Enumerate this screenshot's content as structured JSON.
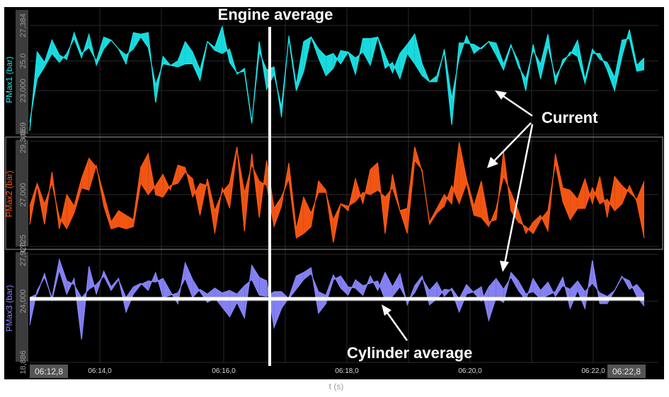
{
  "chart_data": {
    "type": "line",
    "title": "",
    "xlabel": "t (s)",
    "x_start_label": "06:12,8",
    "x_end_label": "06:22,8",
    "x_ticks": [
      "06:14,0",
      "06:16,0",
      "06:18,0",
      "06:20,0",
      "06:22,0"
    ],
    "engine_average_marker": "06:16,7",
    "sample_count": 84,
    "series": [
      {
        "name": "PMax1 (bar)",
        "color": "#19e6ea",
        "ylim": [
          20.069,
          27.384
        ],
        "tick_labels": [
          "20,069",
          "23,000",
          "25,0",
          "27,384"
        ],
        "tick_values": [
          20.069,
          23.0,
          25.0,
          27.384
        ],
        "current": [
          20.3,
          25.6,
          24.9,
          26.4,
          25.4,
          25.1,
          26.9,
          25.5,
          25.9,
          25.0,
          26.6,
          26.4,
          25.8,
          24.8,
          26.9,
          26.8,
          26.9,
          22.2,
          25.3,
          24.7,
          24.6,
          24.8,
          24.8,
          23.7,
          26.3,
          25.9,
          27.3,
          24.9,
          24.2,
          24.3,
          20.8,
          26.3,
          23.1,
          24.1,
          21.9,
          26.5,
          23.0,
          24.3,
          26.6,
          25.8,
          25.3,
          25.5,
          24.8,
          25.6,
          24.1,
          26.5,
          26.5,
          26.6,
          25.4,
          24.2,
          25.5,
          26.1,
          26.8,
          24.8,
          23.6,
          24.0,
          25.6,
          20.7,
          26.2,
          26.2,
          26.1,
          25.8,
          26.3,
          25.4,
          24.4,
          26.0,
          25.0,
          23.0,
          26.1,
          23.8,
          26.0,
          23.9,
          24.8,
          25.6,
          25.3,
          23.5,
          25.5,
          25.5,
          24.4,
          23.0,
          25.3,
          27.1,
          24.7,
          25.2
        ],
        "cylinder_average": [
          20.9,
          23.8,
          24.6,
          25.5,
          24.9,
          25.5,
          26.5,
          25.2,
          26.8,
          24.7,
          25.8,
          26.4,
          25.8,
          25.4,
          25.8,
          26.6,
          25.9,
          23.4,
          24.8,
          24.7,
          25.0,
          26.3,
          25.6,
          24.4,
          26.3,
          25.7,
          25.5,
          25.8,
          24.1,
          24.5,
          20.9,
          25.6,
          24.4,
          24.6,
          21.2,
          26.7,
          23.4,
          26.3,
          26.6,
          25.2,
          24.0,
          24.5,
          25.7,
          25.6,
          25.2,
          25.6,
          24.7,
          26.6,
          24.5,
          24.9,
          23.8,
          25.5,
          24.8,
          24.0,
          23.6,
          23.6,
          25.8,
          22.5,
          25.2,
          26.7,
          25.5,
          25.9,
          26.3,
          26.2,
          24.8,
          26.1,
          24.6,
          23.8,
          25.7,
          24.8,
          26.8,
          23.4,
          25.1,
          25.4,
          26.4,
          23.8,
          25.8,
          25.1,
          24.9,
          23.9,
          26.4,
          26.5,
          24.3,
          24.4
        ]
      },
      {
        "name": "PMax2 (bar)",
        "color": "#ff5a14",
        "ylim": [
          24.725,
          29.346
        ],
        "tick_labels": [
          "24,725",
          "27,000",
          "29,346"
        ],
        "tick_values": [
          24.725,
          27.0,
          29.346
        ],
        "current": [
          25.7,
          27.4,
          25.7,
          28.0,
          25.5,
          27.0,
          26.5,
          27.7,
          28.6,
          28.2,
          27.0,
          25.8,
          26.3,
          26.1,
          25.9,
          28.2,
          28.8,
          27.0,
          26.9,
          27.4,
          27.5,
          28.0,
          27.7,
          26.1,
          27.7,
          26.3,
          27.1,
          27.5,
          29.1,
          25.4,
          28.8,
          26.0,
          28.5,
          26.4,
          26.9,
          27.7,
          25.1,
          25.3,
          25.6,
          27.6,
          27.2,
          24.9,
          26.6,
          26.3,
          27.7,
          26.6,
          28.1,
          28.4,
          25.3,
          27.9,
          26.3,
          26.4,
          29.1,
          28.0,
          25.8,
          26.4,
          27.0,
          26.6,
          29.3,
          27.7,
          26.5,
          27.6,
          25.8,
          25.9,
          28.9,
          26.3,
          25.8,
          25.6,
          25.3,
          25.9,
          26.3,
          28.4,
          26.7,
          25.9,
          26.4,
          26.4,
          27.3,
          26.6,
          26.8,
          26.3,
          26.6,
          27.4,
          26.7,
          25.1
        ],
        "cylinder_average": [
          26.5,
          27.5,
          26.6,
          27.5,
          26.0,
          25.5,
          26.2,
          27.3,
          27.2,
          28.3,
          26.5,
          25.5,
          25.6,
          25.5,
          25.6,
          27.5,
          27.0,
          27.4,
          27.9,
          27.2,
          28.3,
          28.2,
          26.9,
          27.5,
          27.4,
          25.3,
          27.3,
          26.4,
          29.0,
          27.1,
          28.3,
          27.6,
          27.4,
          25.6,
          26.5,
          28.4,
          25.5,
          26.9,
          26.2,
          27.1,
          27.1,
          25.9,
          26.6,
          26.5,
          26.7,
          27.1,
          27.0,
          27.2,
          26.9,
          27.3,
          26.3,
          25.3,
          28.5,
          28.1,
          25.7,
          26.2,
          26.5,
          27.4,
          26.6,
          27.5,
          26.1,
          26.0,
          25.6,
          26.4,
          27.8,
          27.1,
          26.3,
          25.3,
          25.8,
          26.1,
          25.4,
          28.8,
          27.3,
          27.2,
          26.8,
          27.7,
          26.6,
          27.8,
          26.0,
          27.8,
          27.4,
          27.1,
          26.8,
          27.6
        ],
        "fill_between": true
      },
      {
        "name": "PMax3 (bar)",
        "color": "#8a87ff",
        "ylim": [
          18.886,
          27.92
        ],
        "tick_labels": [
          "18,886",
          "24,000",
          "27,920"
        ],
        "tick_values": [
          18.886,
          24.0,
          27.92
        ],
        "current": [
          24.3,
          24.6,
          26.3,
          24.1,
          26.6,
          24.6,
          25.9,
          20.8,
          26.9,
          24.6,
          26.5,
          25.2,
          25.9,
          23.1,
          24.6,
          25.4,
          25.7,
          25.6,
          25.9,
          24.8,
          23.8,
          27.2,
          25.8,
          24.8,
          23.9,
          24.3,
          23.5,
          22.7,
          23.9,
          22.6,
          27.0,
          26.0,
          25.7,
          21.8,
          23.4,
          24.3,
          26.1,
          26.4,
          26.8,
          23.0,
          23.8,
          25.8,
          26.1,
          25.2,
          25.1,
          24.5,
          26.1,
          24.9,
          26.4,
          25.2,
          26.3,
          23.7,
          25.3,
          26.1,
          23.7,
          24.2,
          25.0,
          24.9,
          23.1,
          24.6,
          24.8,
          25.2,
          22.4,
          24.3,
          23.9,
          26.4,
          25.7,
          24.6,
          24.8,
          24.2,
          24.5,
          24.8,
          26.0,
          23.4,
          24.9,
          23.4,
          27.4,
          23.8,
          23.8,
          24.9,
          26.0,
          25.7,
          24.4,
          23.6
        ],
        "cylinder_average": [
          22.0,
          24.9,
          26.0,
          24.3,
          27.5,
          25.7,
          25.4,
          24.3,
          25.0,
          25.4,
          26.1,
          24.9,
          25.8,
          24.3,
          25.2,
          25.5,
          24.9,
          26.4,
          24.3,
          24.5,
          24.7,
          25.9,
          24.3,
          25.0,
          24.6,
          25.1,
          24.7,
          24.9,
          24.6,
          25.3,
          25.8,
          24.5,
          24.4,
          24.8,
          24.8,
          24.2,
          25.0,
          25.8,
          26.3,
          24.8,
          24.5,
          26.2,
          25.1,
          24.5,
          25.8,
          25.3,
          25.5,
          25.7,
          24.1,
          24.4,
          25.2,
          24.0,
          24.7,
          25.9,
          24.9,
          25.6,
          24.4,
          25.1,
          24.2,
          25.4,
          24.7,
          24.0,
          25.2,
          25.9,
          25.0,
          26.0,
          24.9,
          24.1,
          25.9,
          24.9,
          25.6,
          24.4,
          25.3,
          25.0,
          25.7,
          24.8,
          25.5,
          24.7,
          24.4,
          24.9,
          26.1,
          25.0,
          25.4,
          24.6
        ]
      }
    ],
    "annotations": [
      {
        "text": "Engine average"
      },
      {
        "text": "Current"
      },
      {
        "text": "Cylinder average"
      }
    ]
  }
}
